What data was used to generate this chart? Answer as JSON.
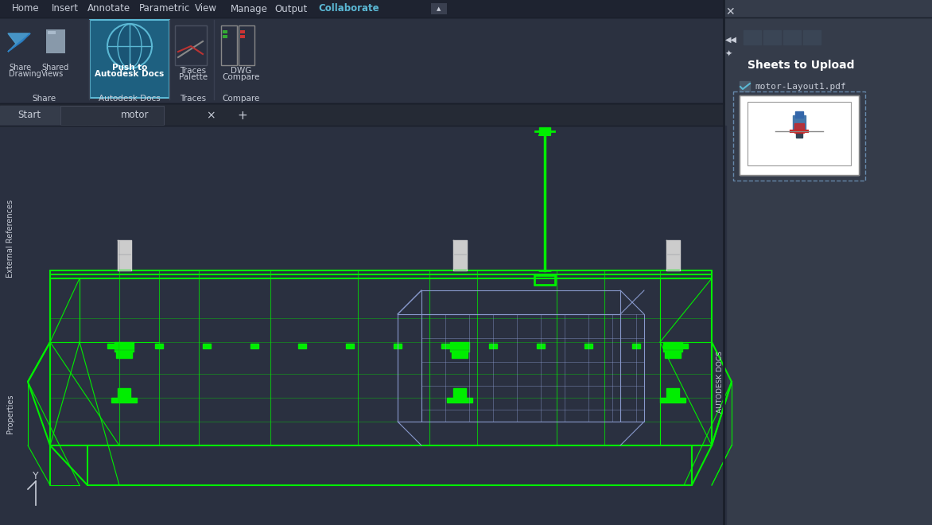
{
  "bg_dark": "#2d3340",
  "bg_darker": "#252a35",
  "bg_medium": "#333a47",
  "bg_light": "#3c4354",
  "bg_toolbar": "#2b3140",
  "bg_menubar": "#1e2330",
  "tab_active_bg": "#2d3340",
  "tab_inactive_bg": "#1e2330",
  "text_color": "#c8cdd8",
  "text_white": "#ffffff",
  "green_drawing": "#00ff00",
  "blue_drawing": "#aabbdd",
  "white_drawing": "#dddddd",
  "highlight_blue": "#4d9ec5",
  "panel_right_bg": "#353c4a",
  "menubar_items": [
    "Home",
    "Insert",
    "Annotate",
    "Parametric",
    "View",
    "Manage",
    "Output",
    "Collaborate"
  ],
  "collaborate_active": true,
  "ribbon_groups": {
    "Share": [
      "Share Drawing",
      "Shared Views"
    ],
    "Autodesk Docs": [
      "Push to\nAutodesk Docs"
    ],
    "Traces": [
      "Traces\nPalette"
    ],
    "Compare": [
      "DWG\nCompare"
    ]
  },
  "tab_names": [
    "Start",
    "motor"
  ],
  "right_panel_title": "Sheets to Upload",
  "right_panel_filename": "motor-Layout1.pdf",
  "side_text_left_top": "External References",
  "side_text_left_bottom": "Properties",
  "side_text_right": "AUTODESK DOCS",
  "coord_label": "Y"
}
